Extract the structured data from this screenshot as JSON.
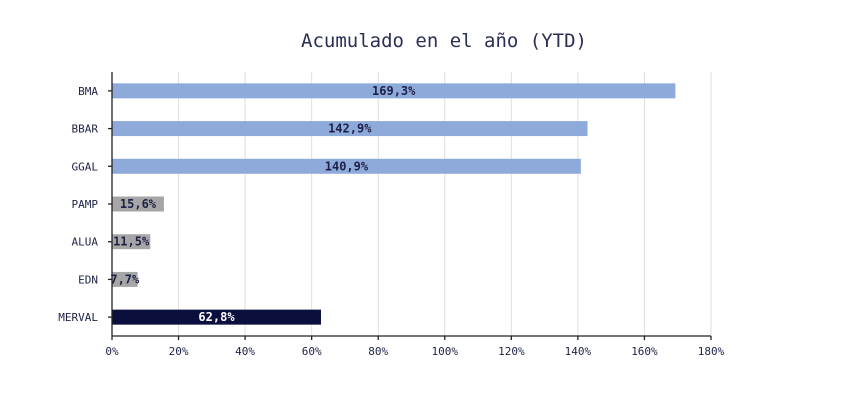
{
  "chart_data": {
    "type": "bar",
    "orientation": "horizontal",
    "title": "Acumulado en el año (YTD)",
    "categories": [
      "BMA",
      "BBAR",
      "GGAL",
      "PAMP",
      "ALUA",
      "EDN",
      "MERVAL"
    ],
    "values": [
      169.3,
      142.9,
      140.9,
      15.6,
      11.5,
      7.7,
      62.8
    ],
    "data_labels": [
      "169,3%",
      "142,9%",
      "140,9%",
      "15,6%",
      "11,5%",
      "7,7%",
      "62,8%"
    ],
    "bar_colors": [
      "#8eaadb",
      "#8eaadb",
      "#8eaadb",
      "#a6a6a6",
      "#a6a6a6",
      "#a6a6a6",
      "#0a0f3d"
    ],
    "label_colors": [
      "#1d2145",
      "#1d2145",
      "#1d2145",
      "#1d2145",
      "#1d2145",
      "#1d2145",
      "#ffffff"
    ],
    "xlim": [
      0,
      180
    ],
    "xticks": [
      0,
      20,
      40,
      60,
      80,
      100,
      120,
      140,
      160,
      180
    ],
    "xtick_labels": [
      "0%",
      "20%",
      "40%",
      "60%",
      "80%",
      "100%",
      "120%",
      "140%",
      "160%",
      "180%"
    ],
    "grid": true,
    "legend": "none"
  }
}
